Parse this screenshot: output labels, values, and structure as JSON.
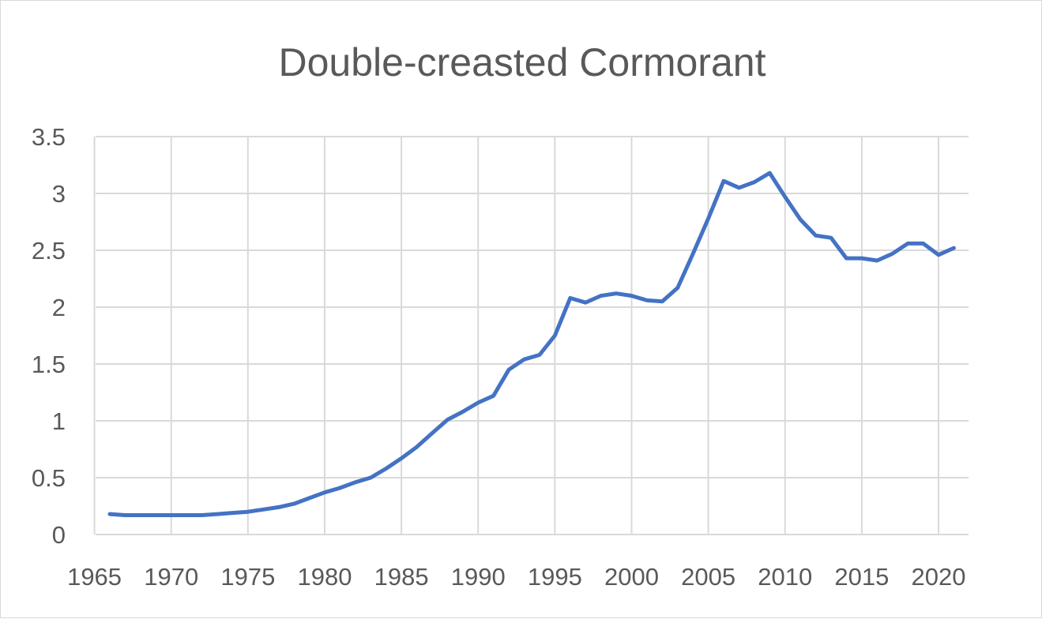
{
  "chart_data": {
    "type": "line",
    "title": "Double-creasted Cormorant",
    "xlabel": "",
    "ylabel": "",
    "xlim": [
      1965,
      2021
    ],
    "ylim": [
      0,
      3.5
    ],
    "grid": true,
    "legend": "none",
    "x_ticks": [
      1965,
      1970,
      1975,
      1980,
      1985,
      1990,
      1995,
      2000,
      2005,
      2010,
      2015,
      2020
    ],
    "x_tick_labels": [
      "1965",
      "1970",
      "1975",
      "1980",
      "1985",
      "1990",
      "1995",
      "2000",
      "2005",
      "2010",
      "2015",
      "2020"
    ],
    "y_ticks": [
      0,
      0.5,
      1,
      1.5,
      2,
      2.5,
      3,
      3.5
    ],
    "y_tick_labels": [
      "0",
      "0.5",
      "1",
      "1.5",
      "2",
      "2.5",
      "3",
      "3.5"
    ],
    "series": [
      {
        "name": "Double-creasted Cormorant",
        "color": "#4472c4",
        "x": [
          1966,
          1967,
          1968,
          1969,
          1970,
          1971,
          1972,
          1973,
          1974,
          1975,
          1976,
          1977,
          1978,
          1979,
          1980,
          1981,
          1982,
          1983,
          1984,
          1985,
          1986,
          1987,
          1988,
          1989,
          1990,
          1991,
          1992,
          1993,
          1994,
          1995,
          1996,
          1997,
          1998,
          1999,
          2000,
          2001,
          2002,
          2003,
          2004,
          2005,
          2006,
          2007,
          2008,
          2009,
          2010,
          2011,
          2012,
          2013,
          2014,
          2015,
          2016,
          2017,
          2018,
          2019,
          2020,
          2021
        ],
        "values": [
          0.18,
          0.17,
          0.17,
          0.17,
          0.17,
          0.17,
          0.17,
          0.18,
          0.19,
          0.2,
          0.22,
          0.24,
          0.27,
          0.32,
          0.37,
          0.41,
          0.46,
          0.5,
          0.58,
          0.67,
          0.77,
          0.89,
          1.01,
          1.08,
          1.16,
          1.22,
          1.45,
          1.54,
          1.58,
          1.75,
          2.08,
          2.04,
          2.1,
          2.12,
          2.1,
          2.06,
          2.05,
          2.17,
          2.47,
          2.78,
          3.11,
          3.05,
          3.1,
          3.18,
          2.97,
          2.77,
          2.63,
          2.61,
          2.43,
          2.43,
          2.41,
          2.47,
          2.56,
          2.56,
          2.46,
          2.52
        ]
      }
    ]
  }
}
